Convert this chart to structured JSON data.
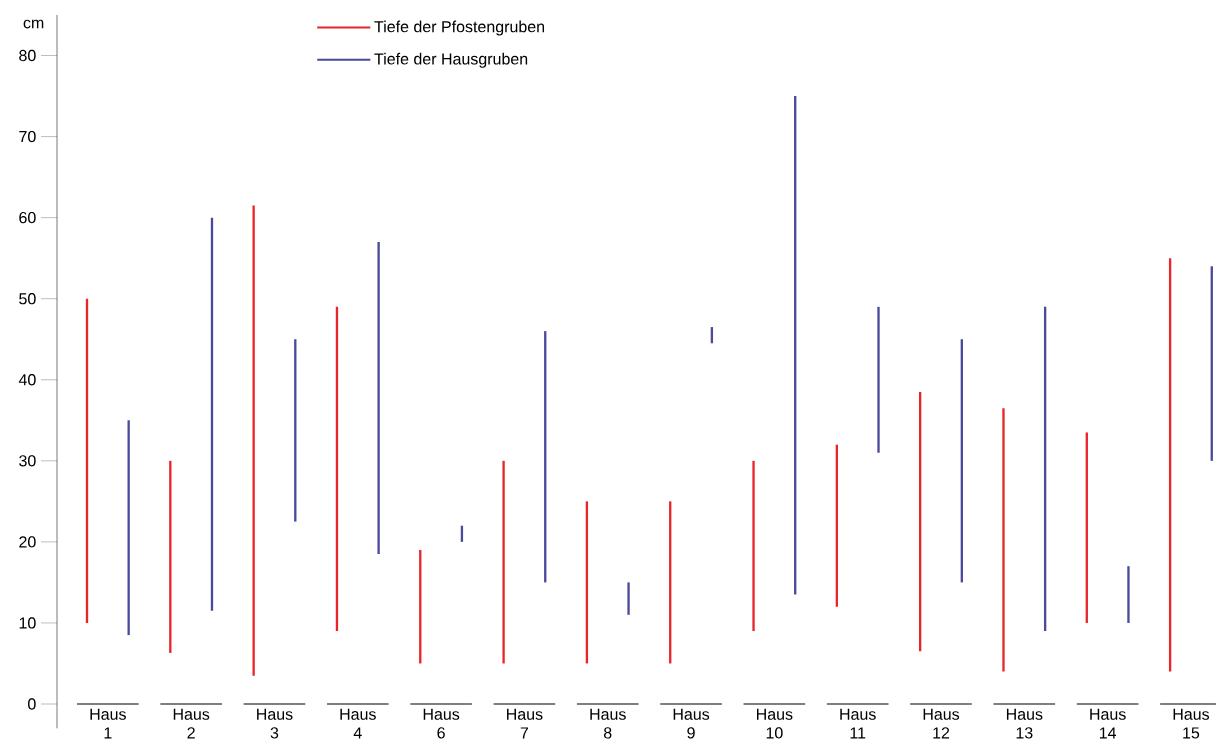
{
  "chart_data": {
    "type": "bar",
    "ylabel": "cm",
    "categories": [
      "Haus 1",
      "Haus 2",
      "Haus 3",
      "Haus 4",
      "Haus 6",
      "Haus 7",
      "Haus 8",
      "Haus 9",
      "Haus 10",
      "Haus 11",
      "Haus 12",
      "Haus 13",
      "Haus 14",
      "Haus 15"
    ],
    "series": [
      {
        "name": "Tiefe der Pfostengruben",
        "color": "#e8262a",
        "base": [
          10,
          6.3,
          3.5,
          9,
          5,
          5,
          5,
          5,
          9,
          12,
          6.5,
          4,
          10,
          4
        ],
        "values": [
          40,
          23.7,
          58,
          40,
          14,
          25,
          20,
          20,
          21,
          20,
          32,
          32.5,
          23.5,
          51
        ]
      },
      {
        "name": "Tiefe der Hausgruben",
        "color": "#4a4a9a",
        "base": [
          8.5,
          11.5,
          22.5,
          18.5,
          20,
          15,
          11,
          44.5,
          13.5,
          31,
          15,
          9,
          10,
          30
        ],
        "values": [
          26.5,
          48.5,
          22.5,
          38.5,
          2,
          31,
          4,
          2,
          61.5,
          18,
          30,
          40,
          7,
          24
        ]
      }
    ],
    "ylim": [
      -3,
      85
    ],
    "yticks": [
      0,
      10,
      20,
      30,
      40,
      50,
      60,
      70,
      80
    ],
    "grid": false,
    "legend": "top"
  }
}
